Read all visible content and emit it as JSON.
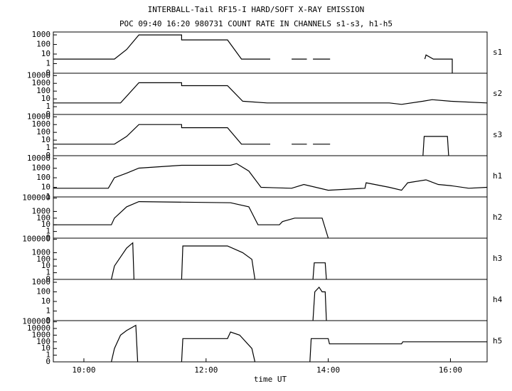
{
  "title": "INTERBALL-Tail RF15-I HARD/SOFT X-RAY EMISSION",
  "subtitle": "POC 09:40 16:20 980731  COUNT RATE IN CHANNELS s1-s3, h1-h5",
  "chart_data": [
    {
      "type": "line",
      "title": "s1",
      "ylog": true,
      "color": "#000000",
      "xlim": [
        9.5,
        16.6
      ],
      "ylim": [
        0.1,
        2000
      ],
      "yticks": [
        {
          "value": 0.1,
          "label": "0"
        },
        1,
        10,
        100,
        1000
      ],
      "x": [
        9.5,
        10.5,
        10.7,
        10.9,
        11.6,
        11.6,
        12.35,
        12.58,
        13.05,
        13.05,
        13.4,
        13.65,
        13.7,
        13.75,
        14.03,
        14.05,
        15.58,
        15.6,
        15.72,
        16.03,
        16.03
      ],
      "values": [
        3,
        3,
        30,
        1000,
        1000,
        300,
        300,
        3,
        3,
        null,
        3,
        3,
        null,
        3,
        3,
        null,
        3,
        8,
        3,
        3,
        0.1
      ]
    },
    {
      "type": "line",
      "title": "s2",
      "ylog": true,
      "color": "#000000",
      "xlim": [
        9.5,
        16.6
      ],
      "ylim": [
        0.1,
        20000
      ],
      "yticks": [
        {
          "value": 0.1,
          "label": "0"
        },
        1,
        10,
        100,
        1000,
        10000
      ],
      "x": [
        9.5,
        10.6,
        10.9,
        11.6,
        11.6,
        12.35,
        12.6,
        13.0,
        14.0,
        15.0,
        15.2,
        15.55,
        15.7,
        16.0,
        16.6
      ],
      "values": [
        3,
        3,
        1200,
        1200,
        500,
        500,
        5,
        3,
        3,
        3,
        2,
        5,
        8,
        5,
        3
      ]
    },
    {
      "type": "line",
      "title": "s3",
      "ylog": true,
      "color": "#000000",
      "xlim": [
        9.5,
        16.6
      ],
      "ylim": [
        0.1,
        20000
      ],
      "yticks": [
        {
          "value": 0.1,
          "label": "0"
        },
        1,
        10,
        100,
        1000,
        10000
      ],
      "x": [
        9.5,
        10.5,
        10.7,
        10.9,
        11.6,
        11.6,
        12.35,
        12.58,
        13.05,
        13.05,
        13.4,
        13.65,
        13.7,
        13.75,
        14.03,
        14.05,
        15.55,
        15.57,
        15.95,
        15.97
      ],
      "values": [
        3,
        3,
        30,
        1000,
        1000,
        400,
        400,
        3,
        3,
        null,
        3,
        3,
        null,
        3,
        3,
        null,
        0.1,
        30,
        30,
        0.1
      ]
    },
    {
      "type": "line",
      "title": "h1",
      "ylog": true,
      "color": "#000000",
      "xlim": [
        9.5,
        16.6
      ],
      "ylim": [
        1,
        20000
      ],
      "yticks": [
        1,
        10,
        100,
        1000,
        10000
      ],
      "x": [
        9.5,
        10.4,
        10.5,
        10.7,
        10.9,
        11.6,
        12.4,
        12.5,
        12.7,
        12.9,
        13.4,
        13.6,
        14.0,
        14.6,
        14.62,
        15.0,
        15.2,
        15.3,
        15.6,
        15.8,
        16.0,
        16.3,
        16.6
      ],
      "values": [
        8,
        8,
        100,
        300,
        1000,
        2000,
        2000,
        3000,
        500,
        10,
        8,
        20,
        5,
        8,
        30,
        10,
        5,
        30,
        60,
        20,
        15,
        8,
        10
      ]
    },
    {
      "type": "line",
      "title": "h2",
      "ylog": true,
      "color": "#000000",
      "xlim": [
        9.5,
        16.6
      ],
      "ylim": [
        0.1,
        150000
      ],
      "yticks": [
        {
          "value": 0.1,
          "label": "0"
        },
        1,
        10,
        100,
        1000,
        100000
      ],
      "x": [
        9.5,
        10.45,
        10.5,
        10.7,
        10.9,
        12.4,
        12.7,
        12.85,
        12.9,
        13.2,
        13.25,
        13.45,
        13.9,
        14.0
      ],
      "values": [
        10,
        10,
        100,
        5000,
        30000,
        20000,
        5000,
        10,
        10,
        10,
        30,
        100,
        100,
        0.1
      ]
    },
    {
      "type": "line",
      "title": "h3",
      "ylog": true,
      "color": "#000000",
      "xlim": [
        9.5,
        16.6
      ],
      "ylim": [
        0.1,
        150000
      ],
      "yticks": [
        {
          "value": 0.1,
          "label": "0"
        },
        1,
        10,
        100,
        1000,
        100000
      ],
      "x": [
        10.45,
        10.5,
        10.7,
        10.8,
        10.82,
        10.83,
        11.6,
        11.62,
        12.35,
        12.6,
        12.75,
        12.8,
        12.85,
        13.75,
        13.77,
        13.95,
        13.97
      ],
      "values": [
        0.1,
        10,
        5000,
        30000,
        0.1,
        null,
        0.1,
        10000,
        10000,
        1000,
        100,
        0.1,
        null,
        0.1,
        30,
        30,
        0.1
      ]
    },
    {
      "type": "line",
      "title": "h4",
      "ylog": true,
      "color": "#000000",
      "xlim": [
        9.5,
        16.6
      ],
      "ylim": [
        0.1,
        2000
      ],
      "yticks": [
        {
          "value": 0.1,
          "label": "0"
        },
        1,
        10,
        100,
        1000
      ],
      "x": [
        13.75,
        13.78,
        13.85,
        13.9,
        13.95,
        13.97
      ],
      "values": [
        0.1,
        100,
        300,
        100,
        100,
        0.1
      ]
    },
    {
      "type": "line",
      "title": "h5",
      "ylog": true,
      "color": "#000000",
      "xlim": [
        9.5,
        16.6
      ],
      "ylim": [
        0.1,
        150000
      ],
      "yticks": [
        {
          "value": 0.1,
          "label": "0"
        },
        1,
        10,
        100,
        1000,
        10000,
        100000
      ],
      "xticks": [
        {
          "value": 10,
          "label": "10:00"
        },
        {
          "value": 12,
          "label": "12:00"
        },
        {
          "value": 14,
          "label": "14:00"
        },
        {
          "value": 16,
          "label": "16:00"
        }
      ],
      "xlabel": "time UT",
      "x": [
        10.45,
        10.5,
        10.6,
        10.7,
        10.85,
        10.88,
        10.9,
        11.6,
        11.62,
        12.35,
        12.4,
        12.55,
        12.75,
        12.8,
        12.85,
        13.7,
        13.72,
        14.0,
        14.02,
        15.2,
        15.22,
        16.6
      ],
      "values": [
        0.1,
        10,
        1000,
        5000,
        30000,
        0.1,
        null,
        0.1,
        300,
        300,
        3000,
        1000,
        10,
        0.1,
        null,
        0.1,
        300,
        300,
        50,
        50,
        100,
        100
      ]
    }
  ]
}
